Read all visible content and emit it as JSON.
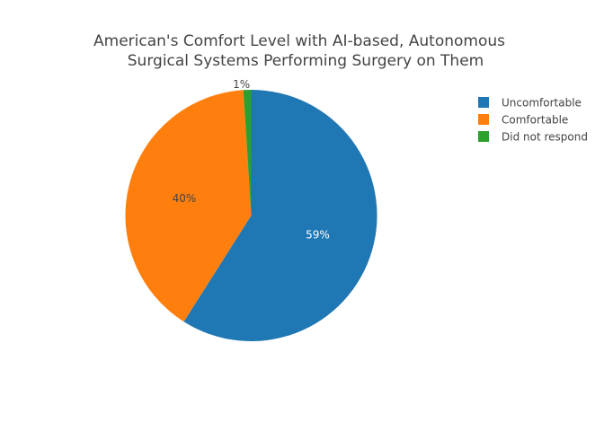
{
  "chart_data": {
    "type": "pie",
    "title_lines": [
      "American's Comfort Level with AI-based, Autonomous",
      "Surgical Systems Performing Surgery on Them"
    ],
    "labels": [
      "Uncomfortable",
      "Comfortable",
      "Did not respond"
    ],
    "values": [
      59,
      40,
      1
    ],
    "value_labels": [
      "59%",
      "40%",
      "1%"
    ],
    "colors": [
      "#1f77b4",
      "#ff7f0e",
      "#2ca02c"
    ],
    "label_colors": [
      "#ffffff",
      "#444444",
      "#444444"
    ],
    "direction": "clockwise",
    "start": "top",
    "legend_position": "top-right"
  }
}
